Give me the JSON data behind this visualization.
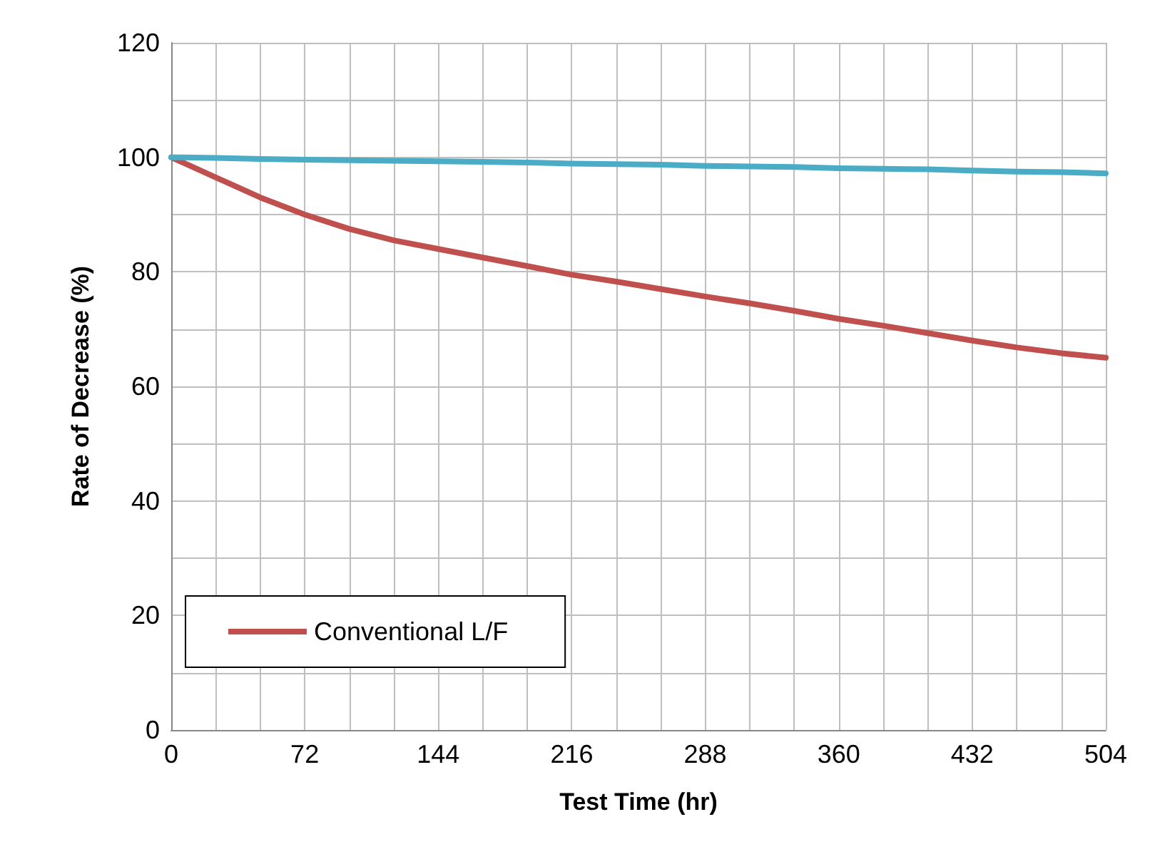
{
  "chart_data": {
    "type": "line",
    "xlabel": "Test Time (hr)",
    "ylabel": "Rate of Decrease (%)",
    "x": [
      0,
      24,
      48,
      72,
      96,
      120,
      144,
      168,
      192,
      216,
      240,
      264,
      288,
      312,
      336,
      360,
      384,
      408,
      432,
      456,
      480,
      504
    ],
    "series": [
      {
        "name": "Conventional L/F",
        "color": "#c0504d",
        "values": [
          100,
          96.5,
          93,
          90,
          87.5,
          85.5,
          84,
          82.5,
          81,
          79.5,
          78.3,
          77,
          75.7,
          74.5,
          73.2,
          71.8,
          70.6,
          69.3,
          68,
          66.8,
          65.8,
          65
        ]
      },
      {
        "color": "#4bacc6",
        "values": [
          100,
          99.9,
          99.7,
          99.6,
          99.5,
          99.4,
          99.3,
          99.2,
          99.1,
          98.9,
          98.8,
          98.7,
          98.5,
          98.4,
          98.3,
          98.1,
          98,
          97.9,
          97.7,
          97.5,
          97.4,
          97.2
        ]
      }
    ],
    "xlim": [
      0,
      504
    ],
    "xticks": [
      0,
      {
        "value": 24,
        "label": null
      },
      {
        "value": 48,
        "label": null
      },
      72,
      {
        "value": 96,
        "label": null
      },
      {
        "value": 120,
        "label": null
      },
      144,
      {
        "value": 168,
        "label": null
      },
      {
        "value": 192,
        "label": null
      },
      216,
      {
        "value": 240,
        "label": null
      },
      {
        "value": 264,
        "label": null
      },
      288,
      {
        "value": 312,
        "label": null
      },
      {
        "value": 336,
        "label": null
      },
      360,
      {
        "value": 384,
        "label": null
      },
      {
        "value": 408,
        "label": null
      },
      432,
      {
        "value": 456,
        "label": null
      },
      {
        "value": 480,
        "label": null
      },
      504
    ],
    "ylim": [
      0,
      120
    ],
    "yticks": [
      0,
      {
        "value": 10,
        "label": null
      },
      20,
      {
        "value": 30,
        "label": null
      },
      40,
      {
        "value": 50,
        "label": null
      },
      60,
      {
        "value": 70,
        "label": null
      },
      80,
      {
        "value": 90,
        "label": null
      },
      100,
      {
        "value": 110,
        "label": null
      },
      120
    ],
    "grid": true,
    "legend": "bottom left",
    "marker": "none",
    "line_style": "solid"
  }
}
